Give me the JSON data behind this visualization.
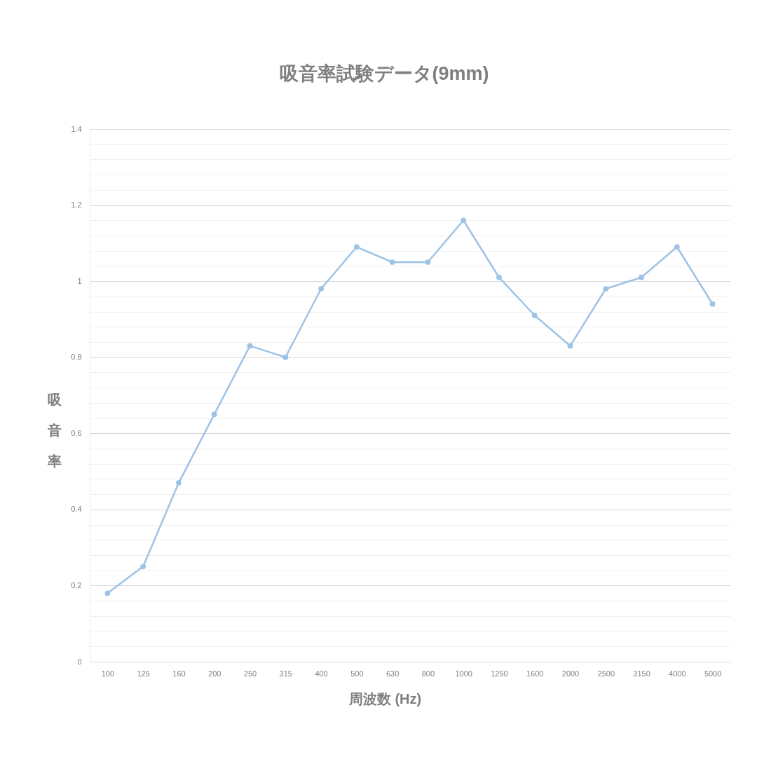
{
  "chart_data": {
    "type": "line",
    "title": "吸音率試験データ(9mm)",
    "xlabel": "周波数 (Hz)",
    "ylabel": "吸音率",
    "categories": [
      "100",
      "125",
      "160",
      "200",
      "250",
      "315",
      "400",
      "500",
      "630",
      "800",
      "1000",
      "1250",
      "1600",
      "2000",
      "2500",
      "3150",
      "4000",
      "5000"
    ],
    "series": [
      {
        "color": "#9dc3e6",
        "values": [
          0.18,
          0.25,
          0.47,
          0.65,
          0.83,
          0.8,
          0.98,
          1.09,
          1.05,
          1.05,
          1.16,
          1.01,
          0.91,
          0.83,
          0.98,
          1.01,
          1.09,
          0.94
        ]
      }
    ],
    "ylim": [
      0,
      1.4
    ],
    "yticks": [
      0,
      {
        "value": 0.04,
        "label": null
      },
      {
        "value": 0.08,
        "label": null
      },
      {
        "value": 0.12,
        "label": null
      },
      {
        "value": 0.16,
        "label": null
      },
      0.2,
      {
        "value": 0.24,
        "label": null
      },
      {
        "value": 0.28,
        "label": null
      },
      {
        "value": 0.32,
        "label": null
      },
      {
        "value": 0.36,
        "label": null
      },
      0.4,
      {
        "value": 0.44,
        "label": null
      },
      {
        "value": 0.48,
        "label": null
      },
      {
        "value": 0.52,
        "label": null
      },
      {
        "value": 0.56,
        "label": null
      },
      0.6,
      {
        "value": 0.64,
        "label": null
      },
      {
        "value": 0.68,
        "label": null
      },
      {
        "value": 0.72,
        "label": null
      },
      {
        "value": 0.76,
        "label": null
      },
      0.8,
      {
        "value": 0.84,
        "label": null
      },
      {
        "value": 0.88,
        "label": null
      },
      {
        "value": 0.92,
        "label": null
      },
      {
        "value": 0.96,
        "label": null
      },
      1,
      {
        "value": 1.04,
        "label": null
      },
      {
        "value": 1.08,
        "label": null
      },
      {
        "value": 1.12,
        "label": null
      },
      {
        "value": 1.16,
        "label": null
      },
      1.2,
      {
        "value": 1.24,
        "label": null
      },
      {
        "value": 1.28,
        "label": null
      },
      {
        "value": 1.32,
        "label": null
      },
      {
        "value": 1.36,
        "label": null
      },
      1.4
    ],
    "grid": "y",
    "marker": "circle",
    "line_style": "solid"
  }
}
